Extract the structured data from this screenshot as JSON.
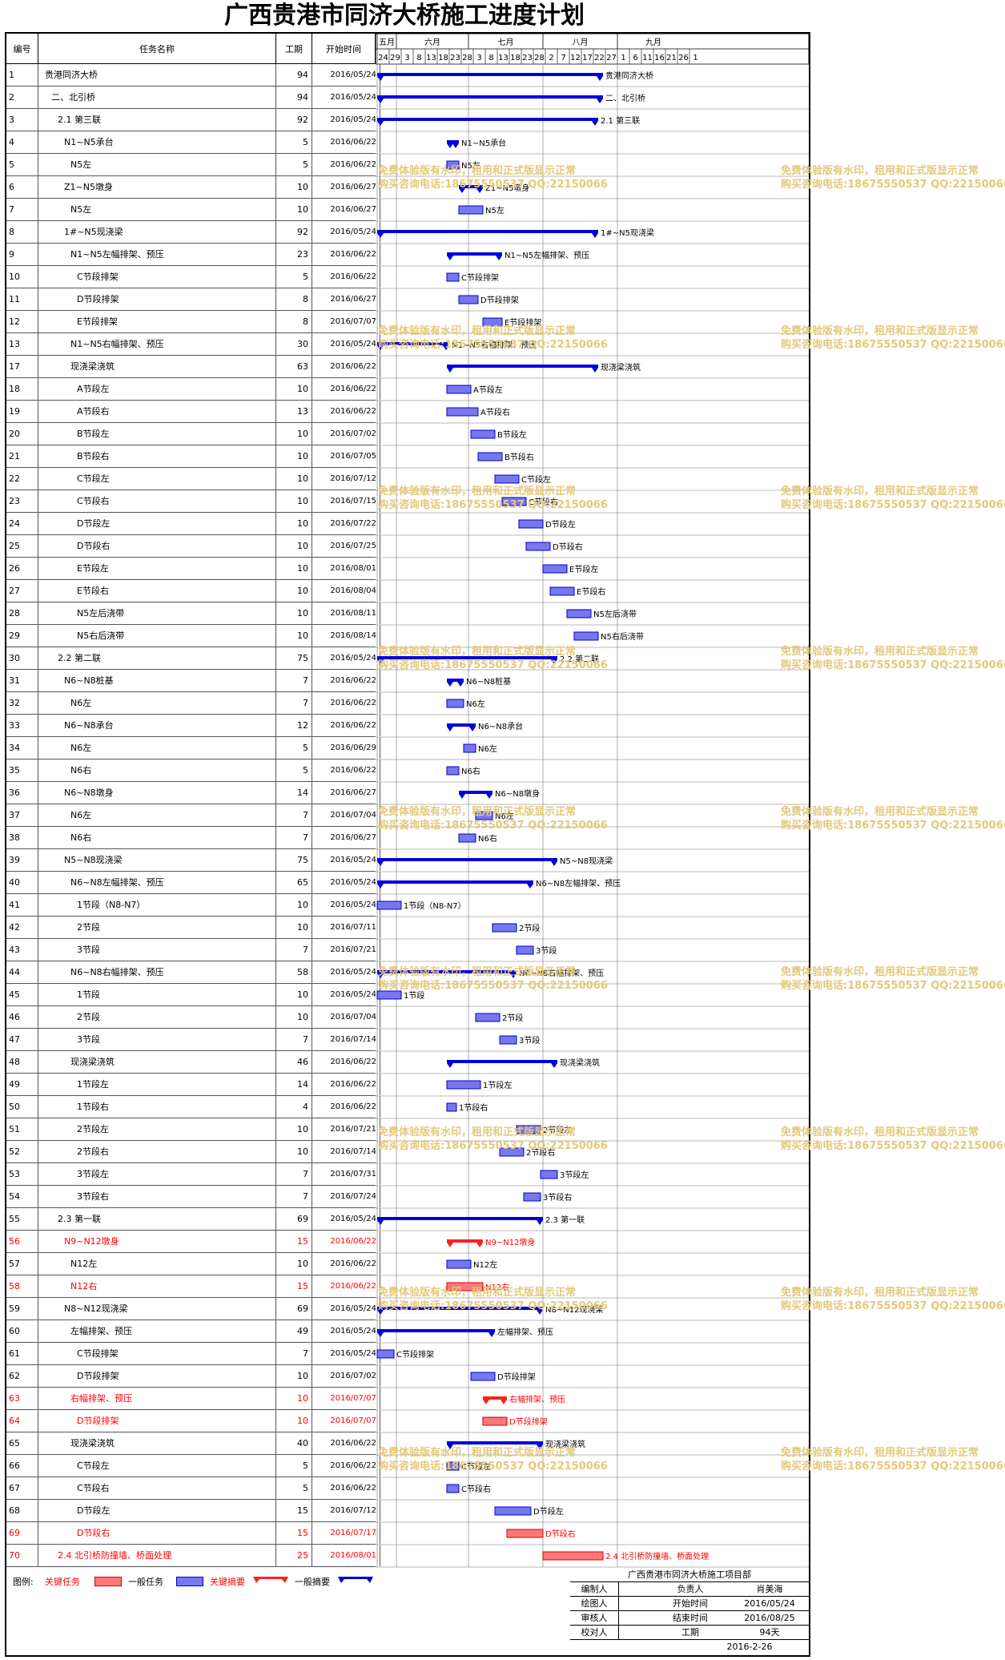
{
  "title": "广西贵港市同济大桥施工进度计划",
  "headers": {
    "id": "编号",
    "name": "任务名称",
    "dur": "工期",
    "start": "开始时间"
  },
  "months": [
    "五月",
    "六月",
    "七月",
    "八月",
    "九月"
  ],
  "days": [
    "24",
    "29",
    "3",
    "8",
    "13",
    "18",
    "23",
    "28",
    "3",
    "8",
    "13",
    "18",
    "23",
    "28",
    "2",
    "7",
    "12",
    "17",
    "22",
    "27",
    "1",
    "6",
    "11",
    "16",
    "21",
    "26",
    "1"
  ],
  "timeline_start": "2016-05-24",
  "colors": {
    "summary": "#0000dd",
    "task": "#7777ee",
    "critical": "#ff2020",
    "critical_task": "#ff7777",
    "link": "#0000cc",
    "crit_link": "#ff0000",
    "watermark": "#e4c87a"
  },
  "watermark": {
    "line1": "免费体验版有水印，租用和正式版显示正常",
    "line2": "购买咨询电话:18675550537 QQ:22150066"
  },
  "tasks": [
    {
      "id": "1",
      "name": "贵港同济大桥",
      "dur": 94,
      "start": "2016/05/24",
      "level": 0,
      "type": "summary",
      "label": "贵港同济大桥"
    },
    {
      "id": "2",
      "name": "二、北引桥",
      "dur": 94,
      "start": "2016/05/24",
      "level": 1,
      "type": "summary",
      "label": "二、北引桥"
    },
    {
      "id": "3",
      "name": "2.1 第三联",
      "dur": 92,
      "start": "2016/05/24",
      "level": 2,
      "type": "summary",
      "label": "2.1 第三联"
    },
    {
      "id": "4",
      "name": "N1~N5承台",
      "dur": 5,
      "start": "2016/06/22",
      "level": 3,
      "type": "summary",
      "label": "N1~N5承台"
    },
    {
      "id": "5",
      "name": "N5左",
      "dur": 5,
      "start": "2016/06/22",
      "level": 4,
      "type": "task",
      "label": "N5左"
    },
    {
      "id": "6",
      "name": "Z1~N5墩身",
      "dur": 10,
      "start": "2016/06/27",
      "level": 3,
      "type": "summary",
      "label": "Z1~N5墩身"
    },
    {
      "id": "7",
      "name": "N5左",
      "dur": 10,
      "start": "2016/06/27",
      "level": 4,
      "type": "task",
      "label": "N5左"
    },
    {
      "id": "8",
      "name": "1#~N5现浇梁",
      "dur": 92,
      "start": "2016/05/24",
      "level": 3,
      "type": "summary",
      "label": "1#~N5现浇梁"
    },
    {
      "id": "9",
      "name": "N1~N5左幅排架、预压",
      "dur": 23,
      "start": "2016/06/22",
      "level": 4,
      "type": "summary",
      "label": "N1~N5左幅排架、预压"
    },
    {
      "id": "10",
      "name": "C节段排架",
      "dur": 5,
      "start": "2016/06/22",
      "level": 5,
      "type": "task",
      "label": "C节段排架"
    },
    {
      "id": "11",
      "name": "D节段排架",
      "dur": 8,
      "start": "2016/06/27",
      "level": 5,
      "type": "task",
      "label": "D节段排架"
    },
    {
      "id": "12",
      "name": "E节段排架",
      "dur": 8,
      "start": "2016/07/07",
      "level": 5,
      "type": "task",
      "label": "E节段排架"
    },
    {
      "id": "13",
      "name": "N1~N5右幅排架、预压",
      "dur": 30,
      "start": "2016/05/24",
      "level": 4,
      "type": "summary",
      "label": "N1~N5右幅排架、预压"
    },
    {
      "id": "17",
      "name": "现浇梁浇筑",
      "dur": 63,
      "start": "2016/06/22",
      "level": 4,
      "type": "summary",
      "label": "现浇梁浇筑"
    },
    {
      "id": "18",
      "name": "A节段左",
      "dur": 10,
      "start": "2016/06/22",
      "level": 5,
      "type": "task",
      "label": "A节段左"
    },
    {
      "id": "19",
      "name": "A节段右",
      "dur": 13,
      "start": "2016/06/22",
      "level": 5,
      "type": "task",
      "label": "A节段右"
    },
    {
      "id": "20",
      "name": "B节段左",
      "dur": 10,
      "start": "2016/07/02",
      "level": 5,
      "type": "task",
      "label": "B节段左"
    },
    {
      "id": "21",
      "name": "B节段右",
      "dur": 10,
      "start": "2016/07/05",
      "level": 5,
      "type": "task",
      "label": "B节段右"
    },
    {
      "id": "22",
      "name": "C节段左",
      "dur": 10,
      "start": "2016/07/12",
      "level": 5,
      "type": "task",
      "label": "C节段左"
    },
    {
      "id": "23",
      "name": "C节段右",
      "dur": 10,
      "start": "2016/07/15",
      "level": 5,
      "type": "task",
      "label": "C节段右"
    },
    {
      "id": "24",
      "name": "D节段左",
      "dur": 10,
      "start": "2016/07/22",
      "level": 5,
      "type": "task",
      "label": "D节段左"
    },
    {
      "id": "25",
      "name": "D节段右",
      "dur": 10,
      "start": "2016/07/25",
      "level": 5,
      "type": "task",
      "label": "D节段右"
    },
    {
      "id": "26",
      "name": "E节段左",
      "dur": 10,
      "start": "2016/08/01",
      "level": 5,
      "type": "task",
      "label": "E节段左"
    },
    {
      "id": "27",
      "name": "E节段右",
      "dur": 10,
      "start": "2016/08/04",
      "level": 5,
      "type": "task",
      "label": "E节段右"
    },
    {
      "id": "28",
      "name": "N5左后浇带",
      "dur": 10,
      "start": "2016/08/11",
      "level": 5,
      "type": "task",
      "label": "N5左后浇带"
    },
    {
      "id": "29",
      "name": "N5右后浇带",
      "dur": 10,
      "start": "2016/08/14",
      "level": 5,
      "type": "task",
      "label": "N5右后浇带"
    },
    {
      "id": "30",
      "name": "2.2 第二联",
      "dur": 75,
      "start": "2016/05/24",
      "level": 2,
      "type": "summary",
      "label": "2.2 第二联"
    },
    {
      "id": "31",
      "name": "N6~N8桩基",
      "dur": 7,
      "start": "2016/06/22",
      "level": 3,
      "type": "summary",
      "label": "N6~N8桩基"
    },
    {
      "id": "32",
      "name": "N6左",
      "dur": 7,
      "start": "2016/06/22",
      "level": 4,
      "type": "task",
      "label": "N6左"
    },
    {
      "id": "33",
      "name": "N6~N8承台",
      "dur": 12,
      "start": "2016/06/22",
      "level": 3,
      "type": "summary",
      "label": "N6~N8承台"
    },
    {
      "id": "34",
      "name": "N6左",
      "dur": 5,
      "start": "2016/06/29",
      "level": 4,
      "type": "task",
      "label": "N6左"
    },
    {
      "id": "35",
      "name": "N6右",
      "dur": 5,
      "start": "2016/06/22",
      "level": 4,
      "type": "task",
      "label": "N6右"
    },
    {
      "id": "36",
      "name": "N6~N8墩身",
      "dur": 14,
      "start": "2016/06/27",
      "level": 3,
      "type": "summary",
      "label": "N6~N8墩身"
    },
    {
      "id": "37",
      "name": "N6左",
      "dur": 7,
      "start": "2016/07/04",
      "level": 4,
      "type": "task",
      "label": "N6左"
    },
    {
      "id": "38",
      "name": "N6右",
      "dur": 7,
      "start": "2016/06/27",
      "level": 4,
      "type": "task",
      "label": "N6右"
    },
    {
      "id": "39",
      "name": "N5~N8现浇梁",
      "dur": 75,
      "start": "2016/05/24",
      "level": 3,
      "type": "summary",
      "label": "N5~N8现浇梁"
    },
    {
      "id": "40",
      "name": "N6~N8左幅排架、预压",
      "dur": 65,
      "start": "2016/05/24",
      "level": 4,
      "type": "summary",
      "label": "N6~N8左幅排架、预压"
    },
    {
      "id": "41",
      "name": "1节段（N8-N7）",
      "dur": 10,
      "start": "2016/05/24",
      "level": 5,
      "type": "task",
      "label": "1节段（N8-N7）"
    },
    {
      "id": "42",
      "name": "2节段",
      "dur": 10,
      "start": "2016/07/11",
      "level": 5,
      "type": "task",
      "label": "2节段"
    },
    {
      "id": "43",
      "name": "3节段",
      "dur": 7,
      "start": "2016/07/21",
      "level": 5,
      "type": "task",
      "label": "3节段"
    },
    {
      "id": "44",
      "name": "N6~N8右幅排架、预压",
      "dur": 58,
      "start": "2016/05/24",
      "level": 4,
      "type": "summary",
      "label": "N6~N8右幅排架、预压"
    },
    {
      "id": "45",
      "name": "1节段",
      "dur": 10,
      "start": "2016/05/24",
      "level": 5,
      "type": "task",
      "label": "1节段"
    },
    {
      "id": "46",
      "name": "2节段",
      "dur": 10,
      "start": "2016/07/04",
      "level": 5,
      "type": "task",
      "label": "2节段"
    },
    {
      "id": "47",
      "name": "3节段",
      "dur": 7,
      "start": "2016/07/14",
      "level": 5,
      "type": "task",
      "label": "3节段"
    },
    {
      "id": "48",
      "name": "现浇梁浇筑",
      "dur": 46,
      "start": "2016/06/22",
      "level": 4,
      "type": "summary",
      "label": "现浇梁浇筑"
    },
    {
      "id": "49",
      "name": "1节段左",
      "dur": 14,
      "start": "2016/06/22",
      "level": 5,
      "type": "task",
      "label": "1节段左"
    },
    {
      "id": "50",
      "name": "1节段右",
      "dur": 4,
      "start": "2016/06/22",
      "level": 5,
      "type": "task",
      "label": "1节段右"
    },
    {
      "id": "51",
      "name": "2节段左",
      "dur": 10,
      "start": "2016/07/21",
      "level": 5,
      "type": "task",
      "label": "2节段左"
    },
    {
      "id": "52",
      "name": "2节段右",
      "dur": 10,
      "start": "2016/07/14",
      "level": 5,
      "type": "task",
      "label": "2节段右"
    },
    {
      "id": "53",
      "name": "3节段左",
      "dur": 7,
      "start": "2016/07/31",
      "level": 5,
      "type": "task",
      "label": "3节段左"
    },
    {
      "id": "54",
      "name": "3节段右",
      "dur": 7,
      "start": "2016/07/24",
      "level": 5,
      "type": "task",
      "label": "3节段右"
    },
    {
      "id": "55",
      "name": "2.3 第一联",
      "dur": 69,
      "start": "2016/05/24",
      "level": 2,
      "type": "summary",
      "label": "2.3 第一联"
    },
    {
      "id": "56",
      "name": "N9~N12墩身",
      "dur": 15,
      "start": "2016/06/22",
      "level": 3,
      "type": "crit_summary",
      "label": "N9~N12墩身"
    },
    {
      "id": "57",
      "name": "N12左",
      "dur": 10,
      "start": "2016/06/22",
      "level": 4,
      "type": "task",
      "label": "N12左"
    },
    {
      "id": "58",
      "name": "N12右",
      "dur": 15,
      "start": "2016/06/22",
      "level": 4,
      "type": "crit_task",
      "label": "N12右"
    },
    {
      "id": "59",
      "name": "N8~N12现浇梁",
      "dur": 69,
      "start": "2016/05/24",
      "level": 3,
      "type": "summary",
      "label": "N8~N12现浇梁"
    },
    {
      "id": "60",
      "name": "左幅排架、预压",
      "dur": 49,
      "start": "2016/05/24",
      "level": 4,
      "type": "summary",
      "label": "左幅排架、预压"
    },
    {
      "id": "61",
      "name": "C节段排架",
      "dur": 7,
      "start": "2016/05/24",
      "level": 5,
      "type": "task",
      "label": "C节段排架"
    },
    {
      "id": "62",
      "name": "D节段排架",
      "dur": 10,
      "start": "2016/07/02",
      "level": 5,
      "type": "task",
      "label": "D节段排架"
    },
    {
      "id": "63",
      "name": "右幅排架、预压",
      "dur": 10,
      "start": "2016/07/07",
      "level": 4,
      "type": "crit_summary",
      "label": "右幅排架、预压"
    },
    {
      "id": "64",
      "name": "D节段排架",
      "dur": 10,
      "start": "2016/07/07",
      "level": 5,
      "type": "crit_task",
      "label": "D节段排架"
    },
    {
      "id": "65",
      "name": "现浇梁浇筑",
      "dur": 40,
      "start": "2016/06/22",
      "level": 4,
      "type": "summary",
      "label": "现浇梁浇筑"
    },
    {
      "id": "66",
      "name": "C节段左",
      "dur": 5,
      "start": "2016/06/22",
      "level": 5,
      "type": "task",
      "label": "C节段左"
    },
    {
      "id": "67",
      "name": "C节段右",
      "dur": 5,
      "start": "2016/06/22",
      "level": 5,
      "type": "task",
      "label": "C节段右"
    },
    {
      "id": "68",
      "name": "D节段左",
      "dur": 15,
      "start": "2016/07/12",
      "level": 5,
      "type": "task",
      "label": "D节段左"
    },
    {
      "id": "69",
      "name": "D节段右",
      "dur": 15,
      "start": "2016/07/17",
      "level": 5,
      "type": "crit_task",
      "label": "D节段右"
    },
    {
      "id": "70",
      "name": "2.4 北引桥防撞墙、桥面处理",
      "dur": 25,
      "start": "2016/08/01",
      "level": 2,
      "type": "crit_task",
      "label": "2.4 北引桥防撞墙、桥面处理"
    }
  ],
  "legend": {
    "label": "图例:",
    "critical_task": "关键任务",
    "normal_task": "一般任务",
    "critical_summary": "关键摘要",
    "normal_summary": "一般摘要"
  },
  "info": {
    "project": "广西贵港市同济大桥施工项目部",
    "compiler_label": "编制人",
    "manager_label": "负责人",
    "manager": "肖美海",
    "drawer_label": "绘图人",
    "start_label": "开始时间",
    "start": "2016/05/24",
    "reviewer_label": "审核人",
    "end_label": "结束时间",
    "end": "2016/08/25",
    "checker_label": "校对人",
    "duration_label": "工期",
    "duration": "94天",
    "date": "2016-2-26"
  }
}
